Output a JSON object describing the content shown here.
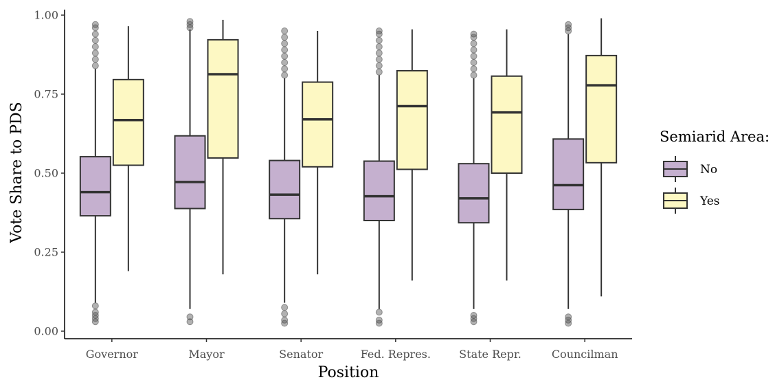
{
  "chart_data": {
    "type": "boxplot",
    "title": "",
    "xlabel": "Position",
    "ylabel": "Vote Share to PDS",
    "ylim": [
      0,
      1
    ],
    "yticks": [
      "0.00",
      "0.25",
      "0.50",
      "0.75",
      "1.00"
    ],
    "grid": false,
    "legend": {
      "title": "Semiarid Area:",
      "position": "right"
    },
    "categories": [
      "Governor",
      "Mayor",
      "Senator",
      "Fed. Repres.",
      "State Repr.",
      "Councilman"
    ],
    "series": [
      {
        "name": "No",
        "color": "#C5B0CF",
        "boxes": [
          {
            "low": 0.09,
            "q1": 0.365,
            "median": 0.44,
            "q3": 0.552,
            "high": 0.83,
            "outliers_low": [
              0.03,
              0.04,
              0.05,
              0.06,
              0.08
            ],
            "outliers_high": [
              0.84,
              0.86,
              0.88,
              0.9,
              0.92,
              0.94,
              0.96,
              0.97
            ]
          },
          {
            "low": 0.07,
            "q1": 0.388,
            "median": 0.472,
            "q3": 0.618,
            "high": 0.955,
            "outliers_low": [
              0.03,
              0.045
            ],
            "outliers_high": [
              0.96,
              0.97,
              0.98
            ]
          },
          {
            "low": 0.09,
            "q1": 0.356,
            "median": 0.432,
            "q3": 0.54,
            "high": 0.8,
            "outliers_low": [
              0.025,
              0.035,
              0.055,
              0.075
            ],
            "outliers_high": [
              0.81,
              0.83,
              0.85,
              0.87,
              0.89,
              0.91,
              0.93,
              0.95
            ]
          },
          {
            "low": 0.07,
            "q1": 0.35,
            "median": 0.427,
            "q3": 0.538,
            "high": 0.81,
            "outliers_low": [
              0.025,
              0.035,
              0.06
            ],
            "outliers_high": [
              0.82,
              0.84,
              0.86,
              0.88,
              0.9,
              0.92,
              0.94,
              0.95
            ]
          },
          {
            "low": 0.07,
            "q1": 0.343,
            "median": 0.42,
            "q3": 0.53,
            "high": 0.8,
            "outliers_low": [
              0.03,
              0.04,
              0.05
            ],
            "outliers_high": [
              0.81,
              0.83,
              0.85,
              0.87,
              0.89,
              0.91,
              0.93,
              0.94
            ]
          },
          {
            "low": 0.07,
            "q1": 0.385,
            "median": 0.462,
            "q3": 0.608,
            "high": 0.94,
            "outliers_low": [
              0.025,
              0.035,
              0.045
            ],
            "outliers_high": [
              0.95,
              0.96,
              0.97
            ]
          }
        ]
      },
      {
        "name": "Yes",
        "color": "#FDF8C3",
        "boxes": [
          {
            "low": 0.19,
            "q1": 0.525,
            "median": 0.668,
            "q3": 0.796,
            "high": 0.965,
            "outliers_low": [],
            "outliers_high": []
          },
          {
            "low": 0.18,
            "q1": 0.548,
            "median": 0.813,
            "q3": 0.922,
            "high": 0.985,
            "outliers_low": [],
            "outliers_high": []
          },
          {
            "low": 0.18,
            "q1": 0.52,
            "median": 0.67,
            "q3": 0.788,
            "high": 0.95,
            "outliers_low": [],
            "outliers_high": []
          },
          {
            "low": 0.16,
            "q1": 0.512,
            "median": 0.712,
            "q3": 0.824,
            "high": 0.955,
            "outliers_low": [],
            "outliers_high": []
          },
          {
            "low": 0.16,
            "q1": 0.5,
            "median": 0.692,
            "q3": 0.807,
            "high": 0.955,
            "outliers_low": [],
            "outliers_high": []
          },
          {
            "low": 0.11,
            "q1": 0.533,
            "median": 0.778,
            "q3": 0.872,
            "high": 0.99,
            "outliers_low": [],
            "outliers_high": []
          }
        ]
      }
    ]
  }
}
